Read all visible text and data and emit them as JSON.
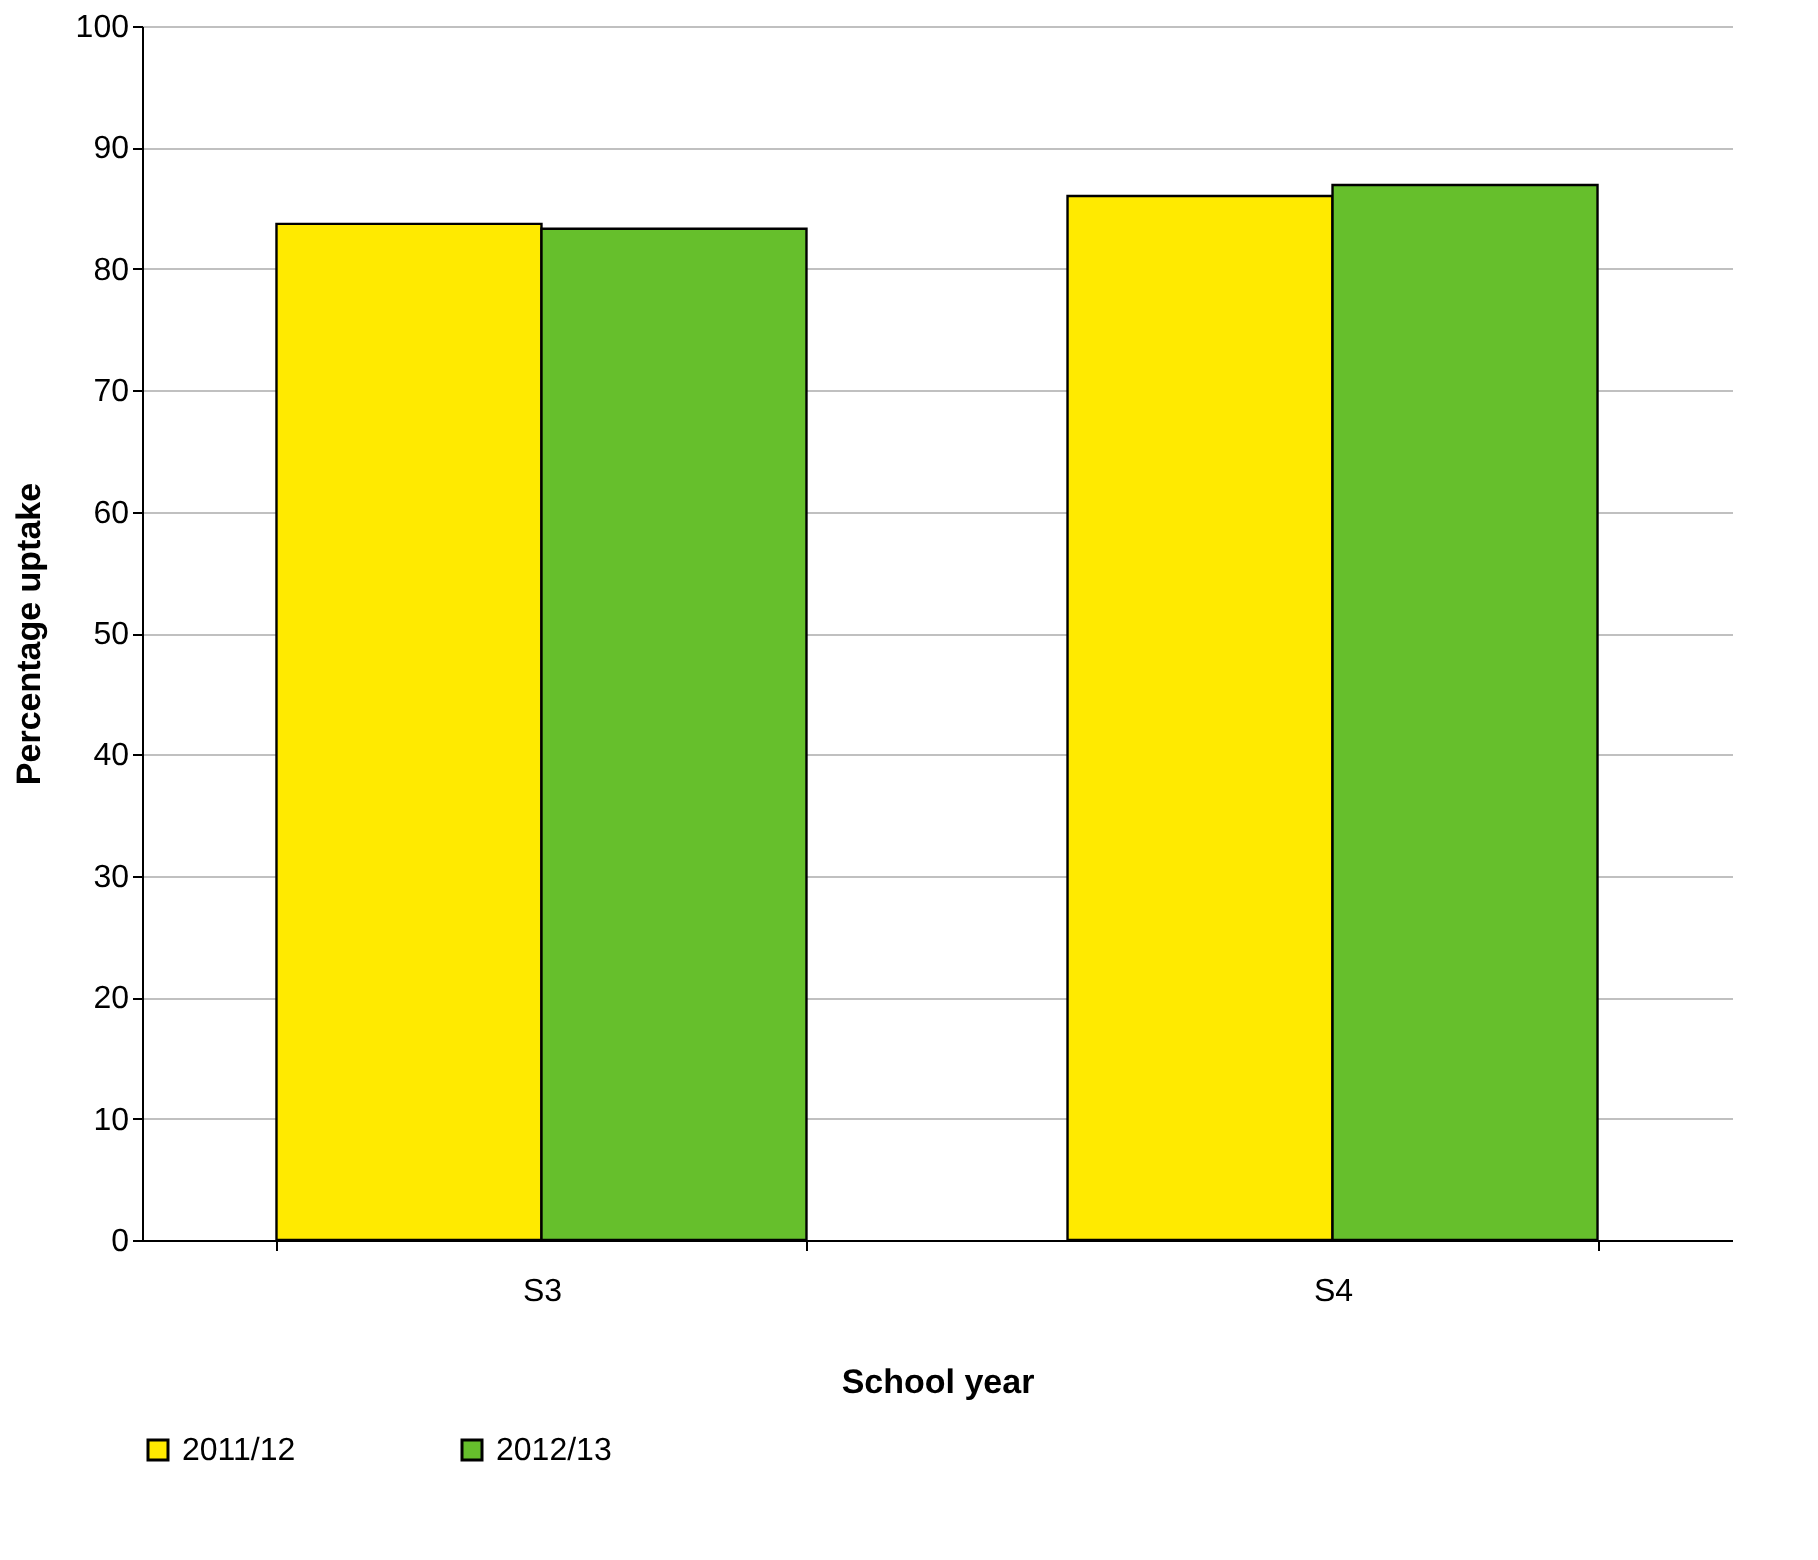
{
  "chart_data": {
    "type": "bar",
    "xlabel": "School year",
    "ylabel": "Percentage uptake",
    "categories": [
      "S3",
      "S4"
    ],
    "series": [
      {
        "name": "2011/12",
        "color": "#ffea00",
        "values": [
          83.7,
          86.0
        ]
      },
      {
        "name": "2012/13",
        "color": "#66bf2c",
        "values": [
          83.3,
          86.9
        ]
      }
    ],
    "ylim": [
      0,
      100
    ],
    "yticks": [
      0,
      10,
      20,
      30,
      40,
      50,
      60,
      70,
      80,
      90,
      100
    ],
    "grid": "y",
    "legend": "bottom"
  }
}
